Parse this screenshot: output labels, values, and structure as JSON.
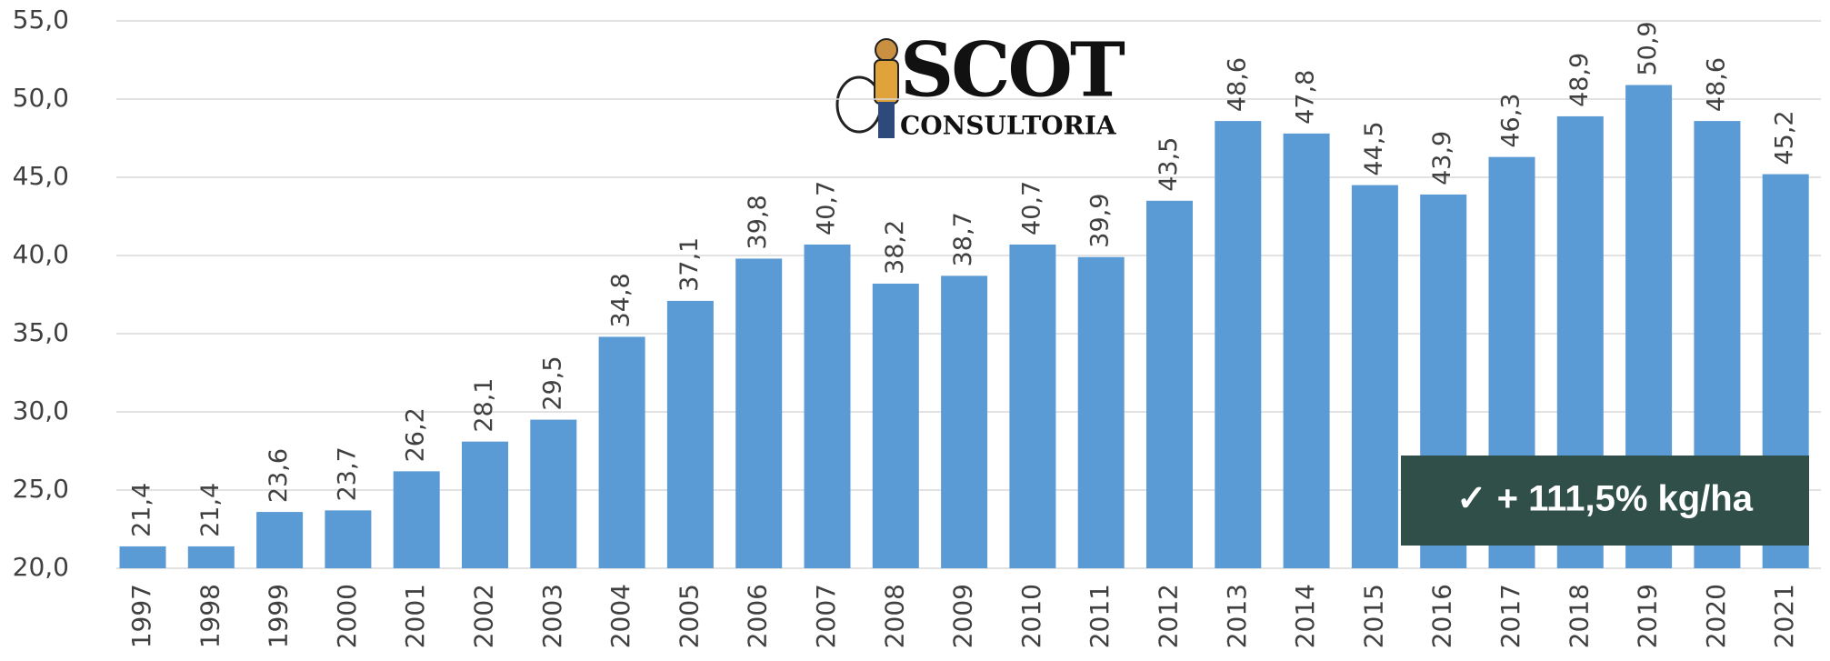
{
  "chart_data": {
    "type": "bar",
    "categories": [
      "1997",
      "1998",
      "1999",
      "2000",
      "2001",
      "2002",
      "2003",
      "2004",
      "2005",
      "2006",
      "2007",
      "2008",
      "2009",
      "2010",
      "2011",
      "2012",
      "2013",
      "2014",
      "2015",
      "2016",
      "2017",
      "2018",
      "2019",
      "2020",
      "2021"
    ],
    "values": [
      21.4,
      21.4,
      23.6,
      23.7,
      26.2,
      28.1,
      29.5,
      34.8,
      37.1,
      39.8,
      40.7,
      38.2,
      38.7,
      40.7,
      39.9,
      43.5,
      48.6,
      47.8,
      44.5,
      43.9,
      46.3,
      48.9,
      50.9,
      48.6,
      45.2
    ],
    "value_labels": [
      "21,4",
      "21,4",
      "23,6",
      "23,7",
      "26,2",
      "28,1",
      "29,5",
      "34,8",
      "37,1",
      "39,8",
      "40,7",
      "38,2",
      "38,7",
      "40,7",
      "39,9",
      "43,5",
      "48,6",
      "47,8",
      "44,5",
      "43,9",
      "46,3",
      "48,9",
      "50,9",
      "48,6",
      "45,2"
    ],
    "color": "#5b9bd5",
    "ylim": [
      20,
      55
    ],
    "yticks": [
      {
        "value": 20,
        "label": "20,0"
      },
      {
        "value": 25,
        "label": "25,0"
      },
      {
        "value": 30,
        "label": "30,0"
      },
      {
        "value": 35,
        "label": "35,0"
      },
      {
        "value": 40,
        "label": "40,0"
      },
      {
        "value": 45,
        "label": "45,0"
      },
      {
        "value": 50,
        "label": "50,0"
      },
      {
        "value": 55,
        "label": "55,0"
      }
    ],
    "grid": true,
    "logo": {
      "title": "SCOT",
      "subtitle": "CONSULTORIA"
    },
    "annotation": "✓  + 111,5% kg/ha"
  }
}
